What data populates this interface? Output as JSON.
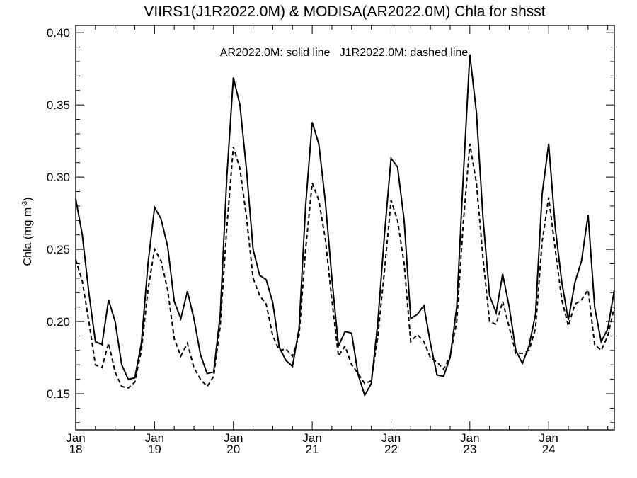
{
  "chart_data": {
    "type": "line",
    "title": "VIIRS1(J1R2022.0M) & MODISA(AR2022.0M)  Chla for shsst",
    "annotation": "AR2022.0M: solid line   J1R2022.0M: dashed line",
    "ylabel": "Chla (mg m",
    "ylabel_sup": "-3",
    "ylabel_tail": ")",
    "xlabel": "",
    "ylim": [
      0.125,
      0.405
    ],
    "xlim": [
      "2018-01",
      "2024-11"
    ],
    "y_ticks": [
      "0.15",
      "0.20",
      "0.25",
      "0.30",
      "0.35",
      "0.40"
    ],
    "x_ticks": [
      {
        "month": "Jan",
        "year": "18"
      },
      {
        "month": "Jan",
        "year": "19"
      },
      {
        "month": "Jan",
        "year": "20"
      },
      {
        "month": "Jan",
        "year": "21"
      },
      {
        "month": "Jan",
        "year": "22"
      },
      {
        "month": "Jan",
        "year": "23"
      },
      {
        "month": "Jan",
        "year": "24"
      }
    ],
    "grid": false,
    "x_start": "2018-01",
    "series": [
      {
        "name": "AR2022.0M",
        "style": "solid",
        "color": "#000000",
        "values": [
          0.285,
          0.26,
          0.22,
          0.186,
          0.184,
          0.215,
          0.2,
          0.17,
          0.16,
          0.161,
          0.185,
          0.24,
          0.279,
          0.271,
          0.252,
          0.214,
          0.202,
          0.221,
          0.202,
          0.177,
          0.164,
          0.165,
          0.205,
          0.3,
          0.369,
          0.35,
          0.305,
          0.25,
          0.232,
          0.229,
          0.213,
          0.182,
          0.173,
          0.169,
          0.195,
          0.28,
          0.338,
          0.323,
          0.283,
          0.23,
          0.183,
          0.193,
          0.192,
          0.163,
          0.149,
          0.157,
          0.2,
          0.26,
          0.313,
          0.307,
          0.27,
          0.202,
          0.205,
          0.211,
          0.185,
          0.163,
          0.162,
          0.175,
          0.21,
          0.3,
          0.385,
          0.345,
          0.272,
          0.218,
          0.206,
          0.233,
          0.21,
          0.18,
          0.171,
          0.183,
          0.205,
          0.288,
          0.323,
          0.265,
          0.227,
          0.201,
          0.227,
          0.242,
          0.274,
          0.21,
          0.186,
          0.195,
          0.222
        ]
      },
      {
        "name": "J1R2022.0M",
        "style": "dashed",
        "color": "#000000",
        "values": [
          0.243,
          0.228,
          0.2,
          0.17,
          0.168,
          0.185,
          0.165,
          0.155,
          0.154,
          0.158,
          0.18,
          0.222,
          0.25,
          0.242,
          0.222,
          0.188,
          0.176,
          0.185,
          0.168,
          0.16,
          0.155,
          0.162,
          0.197,
          0.265,
          0.321,
          0.306,
          0.272,
          0.23,
          0.218,
          0.212,
          0.19,
          0.18,
          0.181,
          0.176,
          0.19,
          0.25,
          0.296,
          0.284,
          0.257,
          0.215,
          0.176,
          0.183,
          0.17,
          0.164,
          0.157,
          0.159,
          0.19,
          0.235,
          0.284,
          0.27,
          0.24,
          0.186,
          0.191,
          0.186,
          0.175,
          0.172,
          0.167,
          0.176,
          0.2,
          0.268,
          0.323,
          0.296,
          0.244,
          0.2,
          0.198,
          0.214,
          0.196,
          0.178,
          0.178,
          0.18,
          0.195,
          0.255,
          0.286,
          0.25,
          0.215,
          0.197,
          0.212,
          0.215,
          0.222,
          0.184,
          0.18,
          0.19,
          0.21
        ]
      }
    ]
  }
}
